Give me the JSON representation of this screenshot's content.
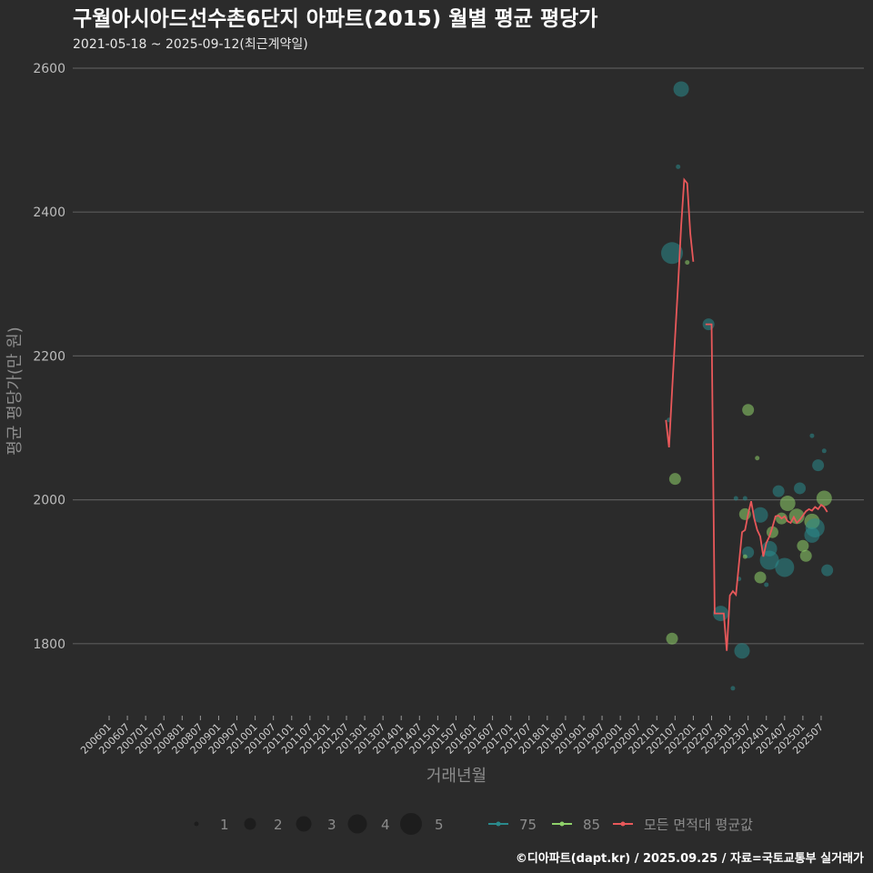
{
  "chart_data": {
    "type": "scatter",
    "title": "구월아시아드선수촌6단지 아파트(2015) 월별 평균 평당가",
    "subtitle": "2021-05-18 ~ 2025-09-12(최근계약일)",
    "xlabel": "거래년월",
    "ylabel": "평균 평당가(만 원)",
    "ylim": [
      1700,
      2620
    ],
    "yticks": [
      1800,
      2000,
      2200,
      2400,
      2600
    ],
    "xticks": [
      "200601",
      "200607",
      "200701",
      "200707",
      "200801",
      "200807",
      "200901",
      "200907",
      "201001",
      "201007",
      "201101",
      "201107",
      "201201",
      "201207",
      "201301",
      "201307",
      "201401",
      "201407",
      "201501",
      "201507",
      "201601",
      "201607",
      "201701",
      "201707",
      "201801",
      "201807",
      "201901",
      "201907",
      "202001",
      "202007",
      "202101",
      "202107",
      "202201",
      "202207",
      "202301",
      "202307",
      "202401",
      "202407",
      "202501",
      "202507"
    ],
    "grid": true,
    "colors": {
      "75": "#2a8a8c",
      "85": "#8fd16a",
      "avg": "#e8585a",
      "background": "#2b2b2b",
      "grid": "#5a5a5a"
    },
    "legend": {
      "placement": "bottom",
      "sizes": [
        1,
        2,
        3,
        4,
        5
      ],
      "series": [
        {
          "key": "75",
          "label": "75"
        },
        {
          "key": "85",
          "label": "85"
        },
        {
          "key": "avg",
          "label": "모든 면적대 평균값"
        }
      ]
    },
    "points": [
      {
        "x": "2021-09",
        "y": 2571,
        "size": 3,
        "area": "75"
      },
      {
        "x": "2021-08",
        "y": 2463,
        "size": 1,
        "area": "75"
      },
      {
        "x": "2021-06",
        "y": 2343,
        "size": 5,
        "area": "75"
      },
      {
        "x": "2021-11",
        "y": 2330,
        "size": 1,
        "area": "85"
      },
      {
        "x": "2021-05",
        "y": 2111,
        "size": 1,
        "area": "75"
      },
      {
        "x": "2021-07",
        "y": 2029,
        "size": 2,
        "area": "85"
      },
      {
        "x": "2021-06",
        "y": 1807,
        "size": 2,
        "area": "85"
      },
      {
        "x": "2022-06",
        "y": 2244,
        "size": 2,
        "area": "75"
      },
      {
        "x": "2023-07",
        "y": 2125,
        "size": 2,
        "area": "85"
      },
      {
        "x": "2023-10",
        "y": 2058,
        "size": 1,
        "area": "85"
      },
      {
        "x": "2025-04",
        "y": 2089,
        "size": 1,
        "area": "75"
      },
      {
        "x": "2025-08",
        "y": 2068,
        "size": 1,
        "area": "75"
      },
      {
        "x": "2025-06",
        "y": 2048,
        "size": 2,
        "area": "75"
      },
      {
        "x": "2024-12",
        "y": 2016,
        "size": 2,
        "area": "75"
      },
      {
        "x": "2024-05",
        "y": 2012,
        "size": 2,
        "area": "75"
      },
      {
        "x": "2023-03",
        "y": 2002,
        "size": 1,
        "area": "75"
      },
      {
        "x": "2023-06",
        "y": 2002,
        "size": 1,
        "area": "75"
      },
      {
        "x": "2024-08",
        "y": 1995,
        "size": 3,
        "area": "85"
      },
      {
        "x": "2025-08",
        "y": 2002,
        "size": 3,
        "area": "85"
      },
      {
        "x": "2023-11",
        "y": 1979,
        "size": 3,
        "area": "75"
      },
      {
        "x": "2023-06",
        "y": 1980,
        "size": 2,
        "area": "85"
      },
      {
        "x": "2024-11",
        "y": 1977,
        "size": 3,
        "area": "85"
      },
      {
        "x": "2024-06",
        "y": 1974,
        "size": 2,
        "area": "85"
      },
      {
        "x": "2025-04",
        "y": 1970,
        "size": 3,
        "area": "85"
      },
      {
        "x": "2025-05",
        "y": 1961,
        "size": 4,
        "area": "75"
      },
      {
        "x": "2025-04",
        "y": 1951,
        "size": 3,
        "area": "75"
      },
      {
        "x": "2024-03",
        "y": 1955,
        "size": 2,
        "area": "85"
      },
      {
        "x": "2024-02",
        "y": 1932,
        "size": 3,
        "area": "75"
      },
      {
        "x": "2025-01",
        "y": 1936,
        "size": 2,
        "area": "85"
      },
      {
        "x": "2023-07",
        "y": 1927,
        "size": 2,
        "area": "75"
      },
      {
        "x": "2024-02",
        "y": 1916,
        "size": 4,
        "area": "75"
      },
      {
        "x": "2025-02",
        "y": 1922,
        "size": 2,
        "area": "85"
      },
      {
        "x": "2024-07",
        "y": 1906,
        "size": 4,
        "area": "75"
      },
      {
        "x": "2025-09",
        "y": 1902,
        "size": 2,
        "area": "75"
      },
      {
        "x": "2023-11",
        "y": 1892,
        "size": 2,
        "area": "85"
      },
      {
        "x": "2023-04",
        "y": 1890,
        "size": 1,
        "area": "75"
      },
      {
        "x": "2024-01",
        "y": 1882,
        "size": 1,
        "area": "75"
      },
      {
        "x": "2022-10",
        "y": 1842,
        "size": 3,
        "area": "75"
      },
      {
        "x": "2023-05",
        "y": 1790,
        "size": 3,
        "area": "75"
      },
      {
        "x": "2023-02",
        "y": 1738,
        "size": 1,
        "area": "75"
      },
      {
        "x": "2023-06",
        "y": 1921,
        "size": 1,
        "area": "85"
      }
    ],
    "average_line": [
      [
        "2021-04",
        2111
      ],
      [
        "2021-05",
        2073
      ],
      [
        "2021-06",
        2150
      ],
      [
        "2021-07",
        2227
      ],
      [
        "2021-08",
        2300
      ],
      [
        "2021-09",
        2380
      ],
      [
        "2021-10",
        2445
      ],
      [
        "2021-11",
        2440
      ],
      [
        "2021-12",
        2370
      ],
      [
        "2022-01",
        2331
      ],
      null,
      [
        "2022-05",
        2244
      ],
      [
        "2022-07",
        2244
      ],
      [
        "2022-08",
        1842
      ],
      [
        "2022-11",
        1842
      ],
      [
        "2022-12",
        1790
      ],
      [
        "2023-01",
        1867
      ],
      [
        "2023-02",
        1873
      ],
      [
        "2023-03",
        1868
      ],
      [
        "2023-04",
        1911
      ],
      [
        "2023-05",
        1955
      ],
      [
        "2023-06",
        1958
      ],
      [
        "2023-07",
        1980
      ],
      [
        "2023-08",
        1998
      ],
      [
        "2023-09",
        1974
      ],
      [
        "2023-10",
        1958
      ],
      [
        "2023-11",
        1949
      ],
      [
        "2023-12",
        1921
      ],
      [
        "2024-01",
        1940
      ],
      [
        "2024-02",
        1949
      ],
      [
        "2024-03",
        1962
      ],
      [
        "2024-04",
        1977
      ],
      [
        "2024-05",
        1978
      ],
      [
        "2024-06",
        1974
      ],
      [
        "2024-07",
        1977
      ],
      [
        "2024-08",
        1970
      ],
      [
        "2024-09",
        1968
      ],
      [
        "2024-10",
        1976
      ],
      [
        "2024-11",
        1968
      ],
      [
        "2024-12",
        1972
      ],
      [
        "2025-01",
        1978
      ],
      [
        "2025-02",
        1984
      ],
      [
        "2025-03",
        1987
      ],
      [
        "2025-04",
        1985
      ],
      [
        "2025-05",
        1990
      ],
      [
        "2025-06",
        1987
      ],
      [
        "2025-07",
        1993
      ],
      [
        "2025-08",
        1990
      ],
      [
        "2025-09",
        1983
      ]
    ]
  },
  "footer": "©디아파트(dapt.kr) / 2025.09.25 / 자료=국토교통부 실거래가"
}
